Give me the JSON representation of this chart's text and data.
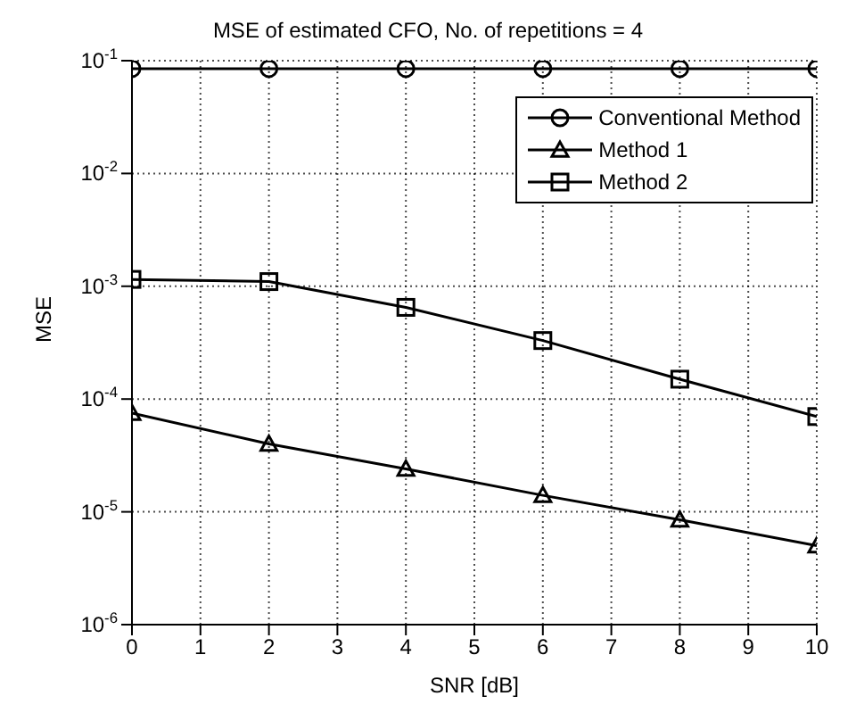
{
  "chart_data": {
    "type": "line",
    "title": "MSE of estimated CFO, No. of repetitions = 4",
    "xlabel": "SNR [dB]",
    "ylabel": "MSE",
    "x": [
      0,
      2,
      4,
      6,
      8,
      10
    ],
    "series": [
      {
        "name": "Conventional Method",
        "color": "#000000",
        "marker": "circle",
        "values": [
          0.085,
          0.085,
          0.085,
          0.085,
          0.085,
          0.085
        ]
      },
      {
        "name": "Method 1",
        "color": "#000000",
        "marker": "triangle",
        "values": [
          7.5e-05,
          4e-05,
          2.4e-05,
          1.4e-05,
          8.5e-06,
          5e-06
        ]
      },
      {
        "name": "Method 2",
        "color": "#000000",
        "marker": "square",
        "values": [
          0.00115,
          0.0011,
          0.00065,
          0.00033,
          0.00015,
          7e-05
        ]
      }
    ],
    "xlim": [
      0,
      10
    ],
    "xticks": [
      0,
      1,
      2,
      3,
      4,
      5,
      6,
      7,
      8,
      9,
      10
    ],
    "ylim": [
      1e-06,
      0.1
    ],
    "yticks": [
      {
        "value": 1e-06,
        "label": "10$^{-6}$"
      },
      {
        "value": 1e-05,
        "label": "10$^{-5}$"
      },
      {
        "value": 0.0001,
        "label": "10$^{-4}$"
      },
      {
        "value": 0.001,
        "label": "10$^{-3}$"
      },
      {
        "value": 0.01,
        "label": "10$^{-2}$"
      },
      {
        "value": 0.1,
        "label": "10$^{-1}$"
      }
    ],
    "log": "y",
    "grid": true,
    "legend": "top right",
    "line_style": "solid"
  }
}
